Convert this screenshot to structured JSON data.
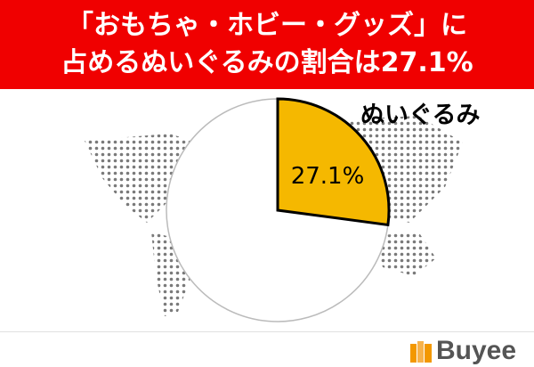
{
  "title_lines": [
    "「おもちゃ・ホビー・グッズ」に",
    "占めるぬいぐるみの割合は27.1%"
  ],
  "chart_data": {
    "type": "pie",
    "title": "「おもちゃ・ホビー・グッズ」に占めるぬいぐるみの割合は27.1%",
    "slices": [
      {
        "label": "ぬいぐるみ",
        "value": 27.1,
        "value_label": "27.1%",
        "color": "#f5b800"
      },
      {
        "label": "",
        "value": 72.9,
        "color": "#ffffff"
      }
    ],
    "start": "12 o'clock, clockwise"
  },
  "colors": {
    "banner": "#f00000",
    "map_dots": "#7a7a7a"
  },
  "logo": {
    "text": "Buyee",
    "color": "#f39800"
  }
}
